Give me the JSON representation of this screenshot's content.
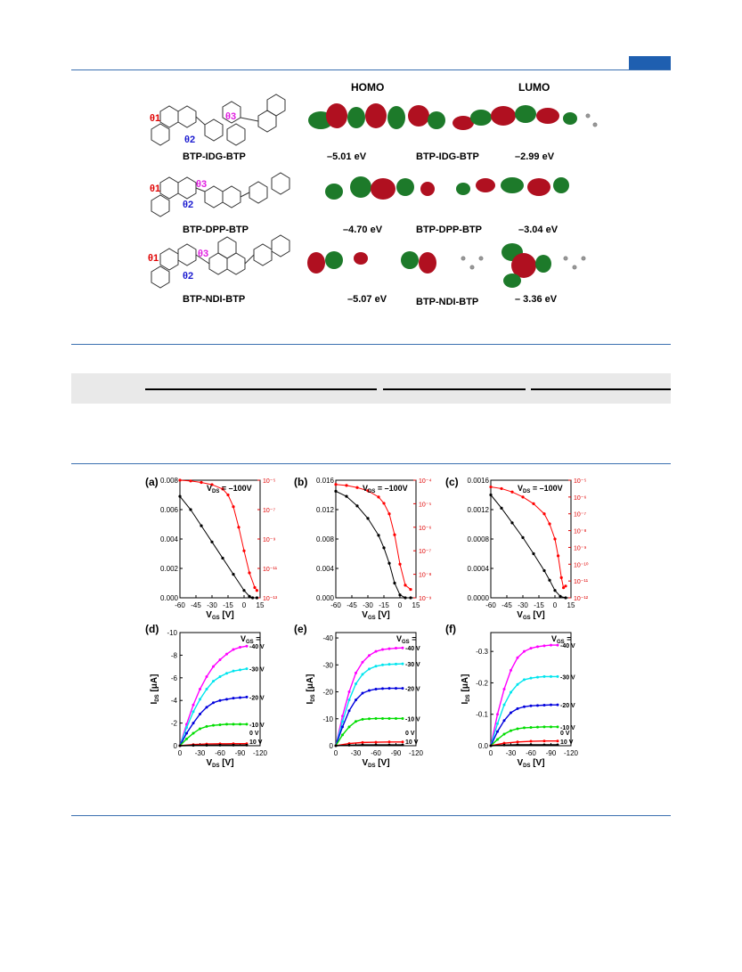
{
  "figure_top": {
    "headers": {
      "homo": "HOMO",
      "lumo": "LUMO"
    },
    "molecules": [
      {
        "name": "BTP-IDG-BTP",
        "homo": "–5.01 eV",
        "lumo": "–2.99 eV",
        "orbital_label": "BTP-IDG-BTP"
      },
      {
        "name": "BTP-DPP-BTP",
        "homo": "–4.70 eV",
        "lumo": "–3.04 eV",
        "orbital_label": "BTP-DPP-BTP"
      },
      {
        "name": "BTP-NDI-BTP",
        "homo": "–5.07 eV",
        "lumo": "– 3.36 eV",
        "orbital_label": "BTP-NDI-BTP"
      }
    ],
    "angles": [
      "θ1",
      "θ2",
      "θ3"
    ]
  },
  "transfer": {
    "vds_label": "V",
    "vds_sub": "DS",
    "vds_val": " = –100V",
    "xlabel": "V",
    "xlabel_sub": "GS",
    "xlabel_unit": " [V]"
  },
  "output": {
    "vgs_label": "V",
    "vgs_sub": "GS",
    "vgs_eq": " =",
    "xlabel": "V",
    "xlabel_sub": "DS",
    "xlabel_unit": " [V]",
    "ylabel": "I",
    "ylabel_sub": "DS",
    "ylabel_unit": " [μA]",
    "level_labels": [
      "-40 V",
      "-30 V",
      "-20 V",
      "-10 V",
      "0 V",
      "10 V"
    ],
    "colors": [
      "#ff00ff",
      "#00e5ee",
      "#0000dd",
      "#00dd00",
      "#ff0000",
      "#000000"
    ]
  },
  "chart_data": [
    {
      "panel": "(a)",
      "type": "line",
      "xlim": [
        -60,
        15
      ],
      "xticks": [
        "-60",
        "-45",
        "-30",
        "-15",
        "0",
        "15"
      ],
      "left_ylim": [
        0,
        0.008
      ],
      "left_ticks": [
        "0.008",
        "0.006",
        "0.004",
        "0.002",
        "0.000"
      ],
      "right_ticks": [
        "10⁻⁵",
        "10⁻⁷",
        "10⁻⁹",
        "10⁻¹¹",
        "10⁻¹³"
      ],
      "right_log": [
        -5,
        -13
      ],
      "series": [
        {
          "axis": "left",
          "color": "#000000",
          "x": [
            -60,
            -50,
            -40,
            -30,
            -20,
            -10,
            0,
            5,
            8,
            12
          ],
          "y": [
            0.0069,
            0.006,
            0.0049,
            0.0038,
            0.0027,
            0.0016,
            0.0005,
            0.0001,
            0.0,
            0.0
          ]
        },
        {
          "axis": "right",
          "color": "#ff0000",
          "x": [
            -60,
            -50,
            -40,
            -30,
            -20,
            -15,
            -10,
            -5,
            0,
            5,
            10,
            12
          ],
          "y": [
            -5.0,
            -5.05,
            -5.15,
            -5.3,
            -5.6,
            -6.0,
            -6.8,
            -8.2,
            -9.8,
            -11.3,
            -12.3,
            -12.5
          ]
        }
      ]
    },
    {
      "panel": "(b)",
      "type": "line",
      "xlim": [
        -60,
        15
      ],
      "xticks": [
        "-60",
        "-45",
        "-30",
        "-15",
        "0",
        "15"
      ],
      "left_ylim": [
        0,
        0.016
      ],
      "left_ticks": [
        "0.016",
        "0.012",
        "0.008",
        "0.004",
        "0.000"
      ],
      "right_ticks": [
        "10⁻⁴",
        "10⁻⁵",
        "10⁻⁶",
        "10⁻⁷",
        "10⁻⁸",
        "10⁻⁹"
      ],
      "right_log": [
        -3.4,
        -9
      ],
      "series": [
        {
          "axis": "left",
          "color": "#000000",
          "x": [
            -60,
            -50,
            -40,
            -30,
            -20,
            -15,
            -10,
            -5,
            0,
            5,
            10
          ],
          "y": [
            0.0145,
            0.0138,
            0.0125,
            0.0108,
            0.0085,
            0.0068,
            0.0047,
            0.002,
            0.0004,
            0.0,
            0.0
          ]
        },
        {
          "axis": "right",
          "color": "#ff0000",
          "x": [
            -60,
            -50,
            -40,
            -30,
            -20,
            -15,
            -10,
            -5,
            0,
            5,
            10
          ],
          "y": [
            -3.6,
            -3.65,
            -3.75,
            -3.9,
            -4.2,
            -4.5,
            -5.0,
            -6.0,
            -7.4,
            -8.4,
            -8.6
          ]
        }
      ]
    },
    {
      "panel": "(c)",
      "type": "line",
      "xlim": [
        -60,
        15
      ],
      "xticks": [
        "-60",
        "-45",
        "-30",
        "-15",
        "0",
        "15"
      ],
      "left_ylim": [
        0,
        0.0016
      ],
      "left_ticks": [
        "0.0016",
        "0.0012",
        "0.0008",
        "0.0004",
        "0.0000"
      ],
      "right_ticks": [
        "10⁻⁵",
        "10⁻⁶",
        "10⁻⁷",
        "10⁻⁸",
        "10⁻⁹",
        "10⁻¹⁰",
        "10⁻¹¹",
        "10⁻¹²"
      ],
      "right_log": [
        -5,
        -12
      ],
      "series": [
        {
          "axis": "left",
          "color": "#000000",
          "x": [
            -60,
            -50,
            -40,
            -30,
            -20,
            -10,
            -5,
            0,
            5,
            10
          ],
          "y": [
            0.0014,
            0.00122,
            0.00102,
            0.00082,
            0.0006,
            0.00037,
            0.00024,
            0.0001,
            2e-05,
            0.0
          ]
        },
        {
          "axis": "right",
          "color": "#ff0000",
          "x": [
            -60,
            -50,
            -40,
            -30,
            -20,
            -10,
            -5,
            0,
            3,
            6,
            8,
            10
          ],
          "y": [
            -5.4,
            -5.5,
            -5.7,
            -6.0,
            -6.4,
            -7.0,
            -7.6,
            -8.5,
            -9.5,
            -10.8,
            -11.4,
            -11.3
          ]
        }
      ]
    },
    {
      "panel": "(d)",
      "type": "line",
      "xlim": [
        0,
        -120
      ],
      "xticks": [
        "0",
        "-30",
        "-60",
        "-90",
        "-120"
      ],
      "ylim": [
        0,
        -10
      ],
      "yticks": [
        "-10",
        "-8",
        "-6",
        "-4",
        "-2",
        "0"
      ],
      "series": [
        {
          "name": "-40 V",
          "color": "#ff00ff",
          "x": [
            0,
            -10,
            -20,
            -30,
            -40,
            -50,
            -60,
            -70,
            -80,
            -90,
            -100
          ],
          "y": [
            0,
            -1.9,
            -3.6,
            -5.0,
            -6.1,
            -7.0,
            -7.6,
            -8.1,
            -8.5,
            -8.7,
            -8.8
          ]
        },
        {
          "name": "-30 V",
          "color": "#00e5ee",
          "x": [
            0,
            -10,
            -20,
            -30,
            -40,
            -50,
            -60,
            -70,
            -80,
            -90,
            -100
          ],
          "y": [
            0,
            -1.6,
            -3.0,
            -4.1,
            -5.0,
            -5.7,
            -6.1,
            -6.4,
            -6.6,
            -6.7,
            -6.8
          ]
        },
        {
          "name": "-20 V",
          "color": "#0000dd",
          "x": [
            0,
            -10,
            -20,
            -30,
            -40,
            -50,
            -60,
            -70,
            -80,
            -90,
            -100
          ],
          "y": [
            0,
            -1.1,
            -2.0,
            -2.8,
            -3.4,
            -3.8,
            -4.0,
            -4.1,
            -4.2,
            -4.25,
            -4.3
          ]
        },
        {
          "name": "-10 V",
          "color": "#00dd00",
          "x": [
            0,
            -10,
            -20,
            -30,
            -40,
            -50,
            -60,
            -70,
            -80,
            -90,
            -100
          ],
          "y": [
            0,
            -0.6,
            -1.1,
            -1.5,
            -1.7,
            -1.8,
            -1.85,
            -1.9,
            -1.9,
            -1.9,
            -1.9
          ]
        },
        {
          "name": "0 V",
          "color": "#ff0000",
          "x": [
            0,
            -20,
            -40,
            -60,
            -80,
            -100
          ],
          "y": [
            0,
            -0.1,
            -0.15,
            -0.17,
            -0.18,
            -0.18
          ]
        },
        {
          "name": "10 V",
          "color": "#000000",
          "x": [
            0,
            -20,
            -40,
            -60,
            -80,
            -100
          ],
          "y": [
            0,
            -0.03,
            -0.04,
            -0.05,
            -0.05,
            -0.05
          ]
        }
      ]
    },
    {
      "panel": "(e)",
      "type": "line",
      "xlim": [
        0,
        -120
      ],
      "xticks": [
        "0",
        "-30",
        "-60",
        "-90",
        "-120"
      ],
      "ylim": [
        0,
        -42
      ],
      "yticks": [
        "-40",
        "-30",
        "-20",
        "-10",
        "0"
      ],
      "series": [
        {
          "name": "-40 V",
          "color": "#ff00ff",
          "x": [
            0,
            -10,
            -20,
            -30,
            -40,
            -50,
            -60,
            -70,
            -80,
            -90,
            -100
          ],
          "y": [
            0,
            -11,
            -20,
            -27,
            -31,
            -33.5,
            -35,
            -35.7,
            -36,
            -36.2,
            -36.3
          ]
        },
        {
          "name": "-30 V",
          "color": "#00e5ee",
          "x": [
            0,
            -10,
            -20,
            -30,
            -40,
            -50,
            -60,
            -70,
            -80,
            -90,
            -100
          ],
          "y": [
            0,
            -9,
            -17,
            -23,
            -26.5,
            -28.5,
            -29.5,
            -30,
            -30.2,
            -30.3,
            -30.4
          ]
        },
        {
          "name": "-20 V",
          "color": "#0000dd",
          "x": [
            0,
            -10,
            -20,
            -30,
            -40,
            -50,
            -60,
            -70,
            -80,
            -90,
            -100
          ],
          "y": [
            0,
            -7,
            -13,
            -17,
            -19.5,
            -20.5,
            -21,
            -21.2,
            -21.3,
            -21.3,
            -21.3
          ]
        },
        {
          "name": "-10 V",
          "color": "#00dd00",
          "x": [
            0,
            -10,
            -20,
            -30,
            -40,
            -50,
            -60,
            -70,
            -80,
            -90,
            -100
          ],
          "y": [
            0,
            -4,
            -7,
            -9,
            -9.8,
            -10,
            -10.1,
            -10.1,
            -10.1,
            -10.1,
            -10.1
          ]
        },
        {
          "name": "0 V",
          "color": "#ff0000",
          "x": [
            0,
            -20,
            -40,
            -60,
            -80,
            -100
          ],
          "y": [
            0,
            -0.8,
            -1.2,
            -1.3,
            -1.4,
            -1.4
          ]
        },
        {
          "name": "10 V",
          "color": "#000000",
          "x": [
            0,
            -20,
            -40,
            -60,
            -80,
            -100
          ],
          "y": [
            0,
            -0.2,
            -0.3,
            -0.3,
            -0.3,
            -0.3
          ]
        }
      ]
    },
    {
      "panel": "(f)",
      "type": "line",
      "xlim": [
        0,
        -120
      ],
      "xticks": [
        "0",
        "-30",
        "-60",
        "-90",
        "-120"
      ],
      "ylim": [
        0,
        -0.36
      ],
      "yticks": [
        "-0.3",
        "-0.2",
        "-0.1",
        "0.0"
      ],
      "series": [
        {
          "name": "-40 V",
          "color": "#ff00ff",
          "x": [
            0,
            -10,
            -20,
            -30,
            -40,
            -50,
            -60,
            -70,
            -80,
            -90,
            -100
          ],
          "y": [
            0,
            -0.1,
            -0.18,
            -0.24,
            -0.28,
            -0.3,
            -0.31,
            -0.315,
            -0.318,
            -0.32,
            -0.32
          ]
        },
        {
          "name": "-30 V",
          "color": "#00e5ee",
          "x": [
            0,
            -10,
            -20,
            -30,
            -40,
            -50,
            -60,
            -70,
            -80,
            -90,
            -100
          ],
          "y": [
            0,
            -0.07,
            -0.13,
            -0.17,
            -0.195,
            -0.21,
            -0.215,
            -0.218,
            -0.22,
            -0.22,
            -0.22
          ]
        },
        {
          "name": "-20 V",
          "color": "#0000dd",
          "x": [
            0,
            -10,
            -20,
            -30,
            -40,
            -50,
            -60,
            -70,
            -80,
            -90,
            -100
          ],
          "y": [
            0,
            -0.045,
            -0.08,
            -0.105,
            -0.118,
            -0.124,
            -0.127,
            -0.128,
            -0.129,
            -0.13,
            -0.13
          ]
        },
        {
          "name": "-10 V",
          "color": "#00dd00",
          "x": [
            0,
            -10,
            -20,
            -30,
            -40,
            -50,
            -60,
            -70,
            -80,
            -90,
            -100
          ],
          "y": [
            0,
            -0.02,
            -0.037,
            -0.048,
            -0.054,
            -0.057,
            -0.058,
            -0.059,
            -0.06,
            -0.06,
            -0.06
          ]
        },
        {
          "name": "0 V",
          "color": "#ff0000",
          "x": [
            0,
            -20,
            -40,
            -60,
            -80,
            -100
          ],
          "y": [
            0,
            -0.008,
            -0.012,
            -0.014,
            -0.015,
            -0.015
          ]
        },
        {
          "name": "10 V",
          "color": "#000000",
          "x": [
            0,
            -20,
            -40,
            -60,
            -80,
            -100
          ],
          "y": [
            0,
            -0.002,
            -0.003,
            -0.003,
            -0.003,
            -0.003
          ]
        }
      ]
    }
  ]
}
